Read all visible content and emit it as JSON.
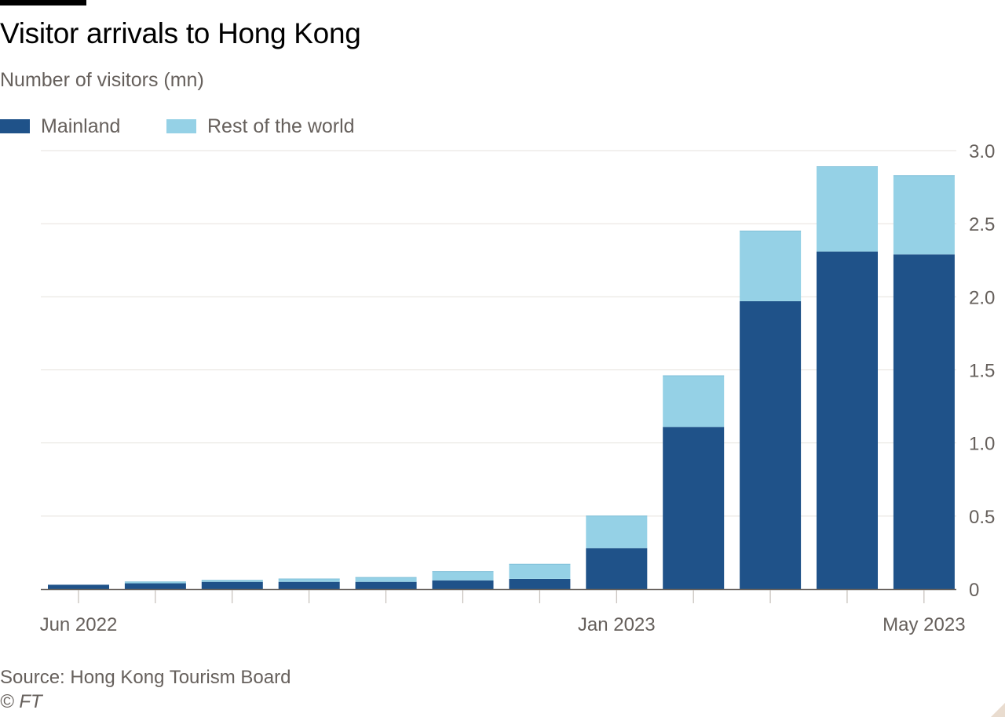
{
  "chart_data": {
    "type": "bar",
    "stacked": true,
    "title": "Visitor arrivals to Hong Kong",
    "subtitle": "Number of visitors (mn)",
    "categories": [
      "Jun 2022",
      "Jul 2022",
      "Aug 2022",
      "Sep 2022",
      "Oct 2022",
      "Nov 2022",
      "Dec 2022",
      "Jan 2023",
      "Feb 2023",
      "Mar 2023",
      "Apr 2023",
      "May 2023"
    ],
    "x_tick_labels": [
      "Jun 2022",
      "Jan 2023",
      "May 2023"
    ],
    "series": [
      {
        "name": "Mainland",
        "color": "#1f5289",
        "values": [
          0.03,
          0.04,
          0.05,
          0.05,
          0.05,
          0.06,
          0.07,
          0.28,
          1.11,
          1.97,
          2.31,
          2.29
        ]
      },
      {
        "name": "Rest of the world",
        "color": "#95d1e6",
        "values": [
          0.0,
          0.01,
          0.01,
          0.02,
          0.03,
          0.06,
          0.1,
          0.22,
          0.35,
          0.48,
          0.58,
          0.54
        ]
      }
    ],
    "ylim": [
      0,
      3.0
    ],
    "yticks": [
      0,
      0.5,
      1.0,
      1.5,
      2.0,
      2.5,
      3.0
    ],
    "ytick_labels": [
      "0",
      "0.5",
      "1.0",
      "1.5",
      "2.0",
      "2.5",
      "3.0"
    ],
    "y_axis_side": "right",
    "grid": true,
    "legend_placement": "top-left",
    "xlabel": "",
    "ylabel": ""
  },
  "footer": {
    "source": "Source: Hong Kong Tourism Board",
    "copyright": "© FT"
  },
  "colors": {
    "gridline": "#e6e2dd",
    "axis": "#66605c",
    "text": "#66605c",
    "title": "#000000"
  }
}
